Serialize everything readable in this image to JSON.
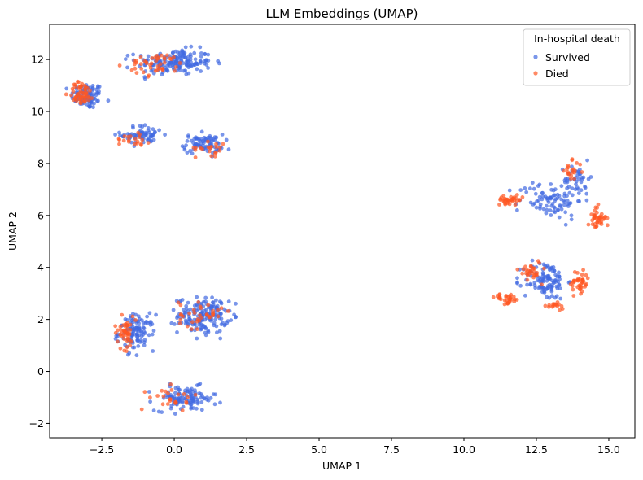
{
  "chart_data": {
    "type": "scatter",
    "title": "LLM Embeddings (UMAP)",
    "xlabel": "UMAP 1",
    "ylabel": "UMAP 2",
    "xlim": [
      -4.3,
      15.9
    ],
    "ylim": [
      -2.55,
      13.35
    ],
    "xticks": [
      -2.5,
      0.0,
      2.5,
      5.0,
      7.5,
      10.0,
      12.5,
      15.0
    ],
    "xtick_labels": [
      "−2.5",
      "0.0",
      "2.5",
      "5.0",
      "7.5",
      "10.0",
      "12.5",
      "15.0"
    ],
    "yticks": [
      -2,
      0,
      2,
      4,
      6,
      8,
      10,
      12
    ],
    "ytick_labels": [
      "−2",
      "0",
      "2",
      "4",
      "6",
      "8",
      "10",
      "12"
    ],
    "grid": false,
    "legend": {
      "title": "In-hospital death",
      "placement": "top-right"
    },
    "series": [
      {
        "name": "Survived",
        "color": "#4169e1",
        "clusters": [
          {
            "cx": -3.0,
            "cy": 10.6,
            "sx": 0.45,
            "sy": 0.4,
            "n": 90
          },
          {
            "cx": 0.0,
            "cy": 11.9,
            "sx": 1.05,
            "sy": 0.4,
            "n": 170
          },
          {
            "cx": -1.1,
            "cy": 9.1,
            "sx": 0.6,
            "sy": 0.3,
            "n": 70
          },
          {
            "cx": 1.0,
            "cy": 8.75,
            "sx": 0.55,
            "sy": 0.3,
            "n": 80
          },
          {
            "cx": -1.3,
            "cy": 1.5,
            "sx": 0.5,
            "sy": 0.55,
            "n": 110
          },
          {
            "cx": 1.0,
            "cy": 2.15,
            "sx": 0.7,
            "sy": 0.55,
            "n": 170
          },
          {
            "cx": 0.4,
            "cy": -1.05,
            "sx": 0.85,
            "sy": 0.38,
            "n": 110
          },
          {
            "cx": 13.0,
            "cy": 6.6,
            "sx": 0.9,
            "sy": 0.6,
            "n": 90
          },
          {
            "cx": 13.9,
            "cy": 7.4,
            "sx": 0.35,
            "sy": 0.45,
            "n": 40
          },
          {
            "cx": 12.8,
            "cy": 3.5,
            "sx": 0.6,
            "sy": 0.6,
            "n": 110
          }
        ],
        "count": 1040
      },
      {
        "name": "Died",
        "color": "#ff5722",
        "clusters": [
          {
            "cx": -3.2,
            "cy": 10.7,
            "sx": 0.35,
            "sy": 0.35,
            "n": 55
          },
          {
            "cx": -0.6,
            "cy": 11.8,
            "sx": 0.8,
            "sy": 0.35,
            "n": 45
          },
          {
            "cx": -1.4,
            "cy": 9.0,
            "sx": 0.5,
            "sy": 0.3,
            "n": 20
          },
          {
            "cx": 1.3,
            "cy": 8.6,
            "sx": 0.45,
            "sy": 0.25,
            "n": 20
          },
          {
            "cx": -1.7,
            "cy": 1.5,
            "sx": 0.3,
            "sy": 0.5,
            "n": 45
          },
          {
            "cx": 0.9,
            "cy": 2.2,
            "sx": 0.6,
            "sy": 0.45,
            "n": 35
          },
          {
            "cx": 0.0,
            "cy": -1.0,
            "sx": 0.7,
            "sy": 0.35,
            "n": 25
          },
          {
            "cx": 11.6,
            "cy": 6.6,
            "sx": 0.35,
            "sy": 0.12,
            "n": 35
          },
          {
            "cx": 14.6,
            "cy": 5.9,
            "sx": 0.25,
            "sy": 0.35,
            "n": 40
          },
          {
            "cx": 13.7,
            "cy": 7.7,
            "sx": 0.3,
            "sy": 0.3,
            "n": 20
          },
          {
            "cx": 11.5,
            "cy": 2.8,
            "sx": 0.35,
            "sy": 0.15,
            "n": 30
          },
          {
            "cx": 14.0,
            "cy": 3.4,
            "sx": 0.25,
            "sy": 0.45,
            "n": 40
          },
          {
            "cx": 12.3,
            "cy": 3.9,
            "sx": 0.3,
            "sy": 0.35,
            "n": 30
          },
          {
            "cx": 13.1,
            "cy": 2.5,
            "sx": 0.35,
            "sy": 0.1,
            "n": 15
          }
        ],
        "count": 455
      }
    ]
  }
}
